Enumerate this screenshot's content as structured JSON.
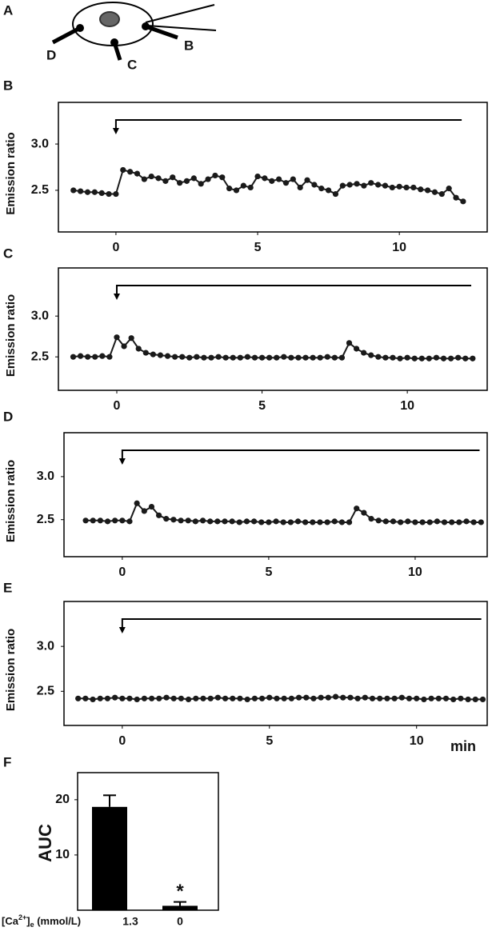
{
  "diagram": {
    "panel": "A",
    "labels": [
      "D",
      "C",
      "B"
    ]
  },
  "chart_data": [
    {
      "type": "line",
      "panel": "B",
      "y_label": "Emission ratio",
      "color": "#1a1a1a",
      "xlim": [
        -2.03,
        13.1
      ],
      "ylim": [
        2.05,
        3.45
      ],
      "xticks": [
        0,
        5,
        10
      ],
      "yticks": [
        2.5,
        {
          "value": 3,
          "label": "3.0"
        }
      ],
      "stimulus": [
        0,
        12.2
      ],
      "x": [
        -1.5,
        -1.25,
        -1,
        -0.75,
        -0.5,
        -0.25,
        0,
        0.25,
        0.5,
        0.75,
        1,
        1.25,
        1.5,
        1.75,
        2,
        2.25,
        2.5,
        2.75,
        3,
        3.25,
        3.5,
        3.75,
        4,
        4.25,
        4.5,
        4.75,
        5,
        5.25,
        5.5,
        5.75,
        6,
        6.25,
        6.5,
        6.75,
        7,
        7.25,
        7.5,
        7.75,
        8,
        8.25,
        8.5,
        8.75,
        9,
        9.25,
        9.5,
        9.75,
        10,
        10.25,
        10.5,
        10.75,
        11,
        11.25,
        11.5,
        11.75,
        12,
        12.25
      ],
      "values": [
        2.5,
        2.49,
        2.48,
        2.48,
        2.47,
        2.46,
        2.46,
        2.72,
        2.7,
        2.68,
        2.62,
        2.65,
        2.63,
        2.6,
        2.64,
        2.58,
        2.6,
        2.63,
        2.57,
        2.62,
        2.66,
        2.64,
        2.52,
        2.5,
        2.55,
        2.53,
        2.65,
        2.63,
        2.6,
        2.62,
        2.58,
        2.62,
        2.53,
        2.61,
        2.56,
        2.52,
        2.5,
        2.46,
        2.55,
        2.56,
        2.57,
        2.55,
        2.58,
        2.56,
        2.55,
        2.53,
        2.54,
        2.53,
        2.53,
        2.51,
        2.5,
        2.48,
        2.46,
        2.52,
        2.42,
        2.38
      ]
    },
    {
      "type": "line",
      "panel": "C",
      "y_label": "Emission ratio",
      "color": "#1a1a1a",
      "xlim": [
        -2.01,
        12.75
      ],
      "ylim": [
        2.09,
        3.59
      ],
      "xticks": [
        0,
        5,
        10
      ],
      "yticks": [
        2.5,
        {
          "value": 3,
          "label": "3.0"
        }
      ],
      "stimulus": [
        0,
        12.2
      ],
      "x": [
        -1.5,
        -1.25,
        -1,
        -0.75,
        -0.5,
        -0.25,
        0,
        0.25,
        0.5,
        0.75,
        1,
        1.25,
        1.5,
        1.75,
        2,
        2.25,
        2.5,
        2.75,
        3,
        3.25,
        3.5,
        3.75,
        4,
        4.25,
        4.5,
        4.75,
        5,
        5.25,
        5.5,
        5.75,
        6,
        6.25,
        6.5,
        6.75,
        7,
        7.25,
        7.5,
        7.75,
        8,
        8.25,
        8.5,
        8.75,
        9,
        9.25,
        9.5,
        9.75,
        10,
        10.25,
        10.5,
        10.75,
        11,
        11.25,
        11.5,
        11.75,
        12,
        12.25
      ],
      "values": [
        2.5,
        2.51,
        2.5,
        2.5,
        2.51,
        2.5,
        2.74,
        2.63,
        2.73,
        2.6,
        2.55,
        2.53,
        2.52,
        2.51,
        2.5,
        2.5,
        2.49,
        2.5,
        2.49,
        2.49,
        2.5,
        2.49,
        2.49,
        2.49,
        2.5,
        2.49,
        2.49,
        2.49,
        2.49,
        2.5,
        2.49,
        2.49,
        2.49,
        2.49,
        2.49,
        2.5,
        2.49,
        2.49,
        2.67,
        2.6,
        2.55,
        2.52,
        2.5,
        2.49,
        2.49,
        2.48,
        2.49,
        2.48,
        2.48,
        2.48,
        2.49,
        2.48,
        2.48,
        2.49,
        2.48,
        2.48
      ]
    },
    {
      "type": "line",
      "panel": "D",
      "y_label": "Emission ratio",
      "color": "#1a1a1a",
      "xlim": [
        -1.99,
        12.46
      ],
      "ylim": [
        2.07,
        3.51
      ],
      "xticks": [
        0,
        5,
        10
      ],
      "yticks": [
        2.5,
        {
          "value": 3,
          "label": "3.0"
        }
      ],
      "stimulus": [
        0,
        12.2
      ],
      "x": [
        -1.25,
        -1,
        -0.75,
        -0.5,
        -0.25,
        0,
        0.25,
        0.5,
        0.75,
        1,
        1.25,
        1.5,
        1.75,
        2,
        2.25,
        2.5,
        2.75,
        3,
        3.25,
        3.5,
        3.75,
        4,
        4.25,
        4.5,
        4.75,
        5,
        5.25,
        5.5,
        5.75,
        6,
        6.25,
        6.5,
        6.75,
        7,
        7.25,
        7.5,
        7.75,
        8,
        8.25,
        8.5,
        8.75,
        9,
        9.25,
        9.5,
        9.75,
        10,
        10.25,
        10.5,
        10.75,
        11,
        11.25,
        11.5,
        11.75,
        12,
        12.25
      ],
      "values": [
        2.49,
        2.49,
        2.49,
        2.48,
        2.49,
        2.49,
        2.48,
        2.69,
        2.6,
        2.65,
        2.55,
        2.51,
        2.5,
        2.49,
        2.49,
        2.48,
        2.49,
        2.48,
        2.48,
        2.48,
        2.48,
        2.47,
        2.48,
        2.48,
        2.47,
        2.47,
        2.48,
        2.47,
        2.47,
        2.48,
        2.47,
        2.47,
        2.47,
        2.47,
        2.48,
        2.47,
        2.47,
        2.63,
        2.58,
        2.51,
        2.49,
        2.48,
        2.48,
        2.47,
        2.48,
        2.47,
        2.47,
        2.47,
        2.48,
        2.47,
        2.47,
        2.47,
        2.48,
        2.47,
        2.47
      ]
    },
    {
      "type": "line",
      "panel": "E",
      "y_label": "Emission ratio",
      "x_label": "min",
      "color": "#1a1a1a",
      "xlim": [
        -1.98,
        12.4
      ],
      "ylim": [
        2.12,
        3.5
      ],
      "xticks": [
        0,
        5,
        10
      ],
      "yticks": [
        2.5,
        {
          "value": 3,
          "label": "3.0"
        }
      ],
      "stimulus": [
        0,
        12.2
      ],
      "x": [
        -1.5,
        -1.25,
        -1,
        -0.75,
        -0.5,
        -0.25,
        0,
        0.25,
        0.5,
        0.75,
        1,
        1.25,
        1.5,
        1.75,
        2,
        2.25,
        2.5,
        2.75,
        3,
        3.25,
        3.5,
        3.75,
        4,
        4.25,
        4.5,
        4.75,
        5,
        5.25,
        5.5,
        5.75,
        6,
        6.25,
        6.5,
        6.75,
        7,
        7.25,
        7.5,
        7.75,
        8,
        8.25,
        8.5,
        8.75,
        9,
        9.25,
        9.5,
        9.75,
        10,
        10.25,
        10.5,
        10.75,
        11,
        11.25,
        11.5,
        11.75,
        12,
        12.25
      ],
      "values": [
        2.42,
        2.42,
        2.41,
        2.42,
        2.42,
        2.43,
        2.42,
        2.42,
        2.41,
        2.42,
        2.42,
        2.42,
        2.43,
        2.42,
        2.42,
        2.41,
        2.42,
        2.42,
        2.42,
        2.43,
        2.42,
        2.42,
        2.42,
        2.41,
        2.42,
        2.42,
        2.43,
        2.42,
        2.42,
        2.42,
        2.43,
        2.43,
        2.42,
        2.43,
        2.43,
        2.44,
        2.43,
        2.43,
        2.42,
        2.43,
        2.42,
        2.42,
        2.42,
        2.42,
        2.43,
        2.42,
        2.42,
        2.41,
        2.42,
        2.42,
        2.42,
        2.41,
        2.42,
        2.41,
        2.41,
        2.41
      ]
    },
    {
      "type": "bar",
      "panel": "F",
      "y_label": "AUC",
      "color": "#000000",
      "x_label": {
        "open": "[Ca",
        "sup": "2+",
        "close": "]",
        "sub": "e",
        "unit": " (mmol/L)"
      },
      "categories": [
        "1.3",
        "0"
      ],
      "values": [
        18.7,
        0.8
      ],
      "errors": [
        2.1,
        0.7
      ],
      "annotations": [
        "",
        "*"
      ],
      "ylim": [
        0,
        24.9
      ],
      "yticks": [
        10,
        20
      ]
    }
  ]
}
